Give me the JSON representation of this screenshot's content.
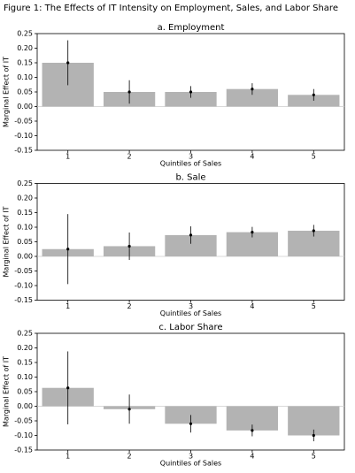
{
  "title": "Figure 1: The Effects of IT Intensity on Employment, Sales, and Labor Share",
  "chart_data": [
    {
      "type": "bar",
      "title": "a. Employment",
      "xlabel": "Quintiles of Sales",
      "ylabel": "Marginal Effect of IT",
      "categories": [
        "1",
        "2",
        "3",
        "4",
        "5"
      ],
      "values": [
        0.15,
        0.05,
        0.05,
        0.06,
        0.04
      ],
      "errors": [
        0.077,
        0.04,
        0.02,
        0.02,
        0.02
      ],
      "color": "#b3b3b3",
      "ylim": [
        -0.15,
        0.25
      ],
      "yticks": [
        -0.15,
        {
          "value": -0.1,
          "label": "-0.10"
        },
        -0.05,
        {
          "value": 0,
          "label": "0.00"
        },
        0.05,
        {
          "value": 0.1,
          "label": "0.10"
        },
        0.15,
        {
          "value": 0.2,
          "label": "0.20"
        },
        0.25
      ]
    },
    {
      "type": "bar",
      "title": "b. Sale",
      "xlabel": "Quintiles of Sales",
      "ylabel": "Marginal Effect of IT",
      "categories": [
        "1",
        "2",
        "3",
        "4",
        "5"
      ],
      "values": [
        0.025,
        0.035,
        0.073,
        0.083,
        0.088
      ],
      "errors": [
        0.12,
        0.047,
        0.03,
        0.018,
        0.02
      ],
      "color": "#b3b3b3",
      "ylim": [
        -0.15,
        0.25
      ],
      "yticks": [
        -0.15,
        {
          "value": -0.1,
          "label": "-0.10"
        },
        -0.05,
        {
          "value": 0,
          "label": "0.00"
        },
        0.05,
        {
          "value": 0.1,
          "label": "0.10"
        },
        0.15,
        {
          "value": 0.2,
          "label": "0.20"
        },
        0.25
      ]
    },
    {
      "type": "bar",
      "title": "c. Labor Share",
      "xlabel": "Quintiles of Sales",
      "ylabel": "Marginal Effect of IT",
      "categories": [
        "1",
        "2",
        "3",
        "4",
        "5"
      ],
      "values": [
        0.063,
        -0.01,
        -0.06,
        -0.083,
        -0.1
      ],
      "errors": [
        0.125,
        0.05,
        0.03,
        0.02,
        0.02
      ],
      "color": "#b3b3b3",
      "ylim": [
        -0.15,
        0.25
      ],
      "yticks": [
        -0.15,
        {
          "value": -0.1,
          "label": "-0.10"
        },
        -0.05,
        {
          "value": 0,
          "label": "0.00"
        },
        0.05,
        {
          "value": 0.1,
          "label": "0.10"
        },
        0.15,
        {
          "value": 0.2,
          "label": "0.20"
        },
        0.25
      ]
    }
  ]
}
